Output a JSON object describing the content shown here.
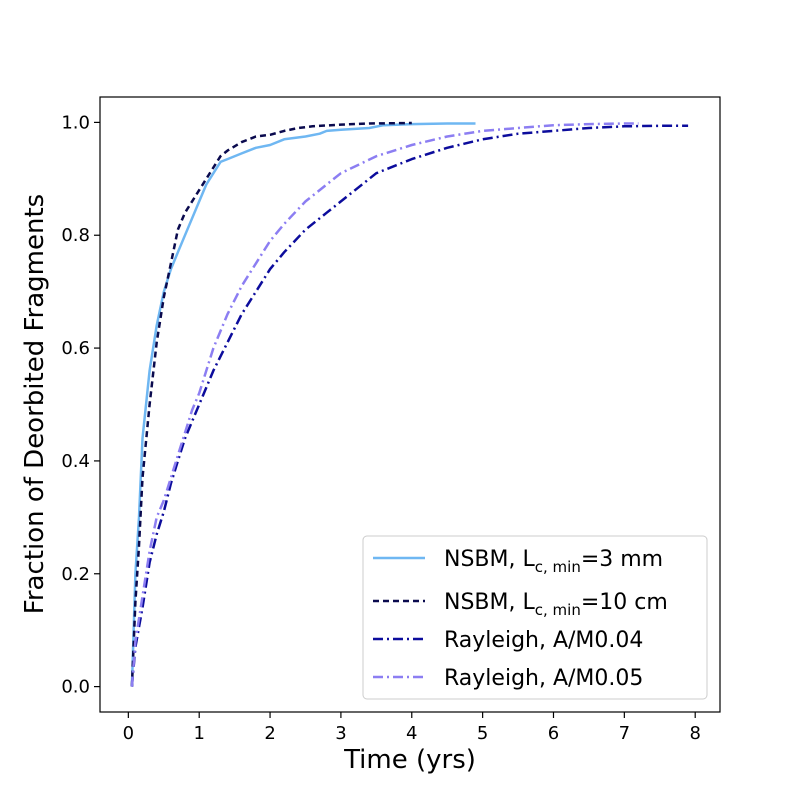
{
  "chart_data": {
    "type": "line",
    "xlabel": "Time (yrs)",
    "ylabel": "Fraction of Deorbited Fragments",
    "xlim": [
      -0.4,
      8.35
    ],
    "ylim": [
      -0.045,
      1.045
    ],
    "xticks": [
      0,
      1,
      2,
      3,
      4,
      5,
      6,
      7,
      8
    ],
    "yticks": [
      0.0,
      0.2,
      0.4,
      0.6,
      0.8,
      1.0
    ],
    "xtick_labels": [
      "0",
      "1",
      "2",
      "3",
      "4",
      "5",
      "6",
      "7",
      "8"
    ],
    "ytick_labels": [
      "0.0",
      "0.2",
      "0.4",
      "0.6",
      "0.8",
      "1.0"
    ],
    "grid": false,
    "legend_position": "bottom-right",
    "series": [
      {
        "name": "NSBM, L",
        "name_sub": "c, min",
        "name_tail": "=3 mm",
        "color": "#6fb7f2",
        "style": "solid",
        "x": [
          0.05,
          0.1,
          0.15,
          0.2,
          0.3,
          0.4,
          0.5,
          0.6,
          0.7,
          0.8,
          0.9,
          1.0,
          1.1,
          1.2,
          1.3,
          1.4,
          1.6,
          1.8,
          2.0,
          2.2,
          2.5,
          2.7,
          2.8,
          3.0,
          3.4,
          3.6,
          4.0,
          4.5,
          4.9
        ],
        "y": [
          0.0,
          0.2,
          0.3,
          0.44,
          0.56,
          0.64,
          0.7,
          0.74,
          0.77,
          0.8,
          0.83,
          0.86,
          0.89,
          0.91,
          0.93,
          0.935,
          0.945,
          0.955,
          0.96,
          0.97,
          0.975,
          0.98,
          0.985,
          0.987,
          0.99,
          0.995,
          0.997,
          0.998,
          0.998
        ]
      },
      {
        "name": "NSBM, L",
        "name_sub": "c, min",
        "name_tail": "=10 cm",
        "color": "#0a0a4e",
        "style": "dashed",
        "x": [
          0.05,
          0.1,
          0.15,
          0.2,
          0.3,
          0.4,
          0.5,
          0.6,
          0.7,
          0.8,
          0.9,
          1.0,
          1.1,
          1.2,
          1.3,
          1.4,
          1.6,
          1.8,
          2.0,
          2.2,
          2.4,
          2.6,
          3.0,
          3.4,
          4.0
        ],
        "y": [
          0.0,
          0.15,
          0.25,
          0.37,
          0.5,
          0.61,
          0.69,
          0.75,
          0.81,
          0.84,
          0.86,
          0.88,
          0.9,
          0.92,
          0.94,
          0.95,
          0.965,
          0.975,
          0.978,
          0.985,
          0.99,
          0.993,
          0.996,
          0.998,
          0.999
        ]
      },
      {
        "name": "Rayleigh, A/M0.04",
        "color": "#0c0c9c",
        "style": "dashdot",
        "x": [
          0.05,
          0.1,
          0.2,
          0.3,
          0.4,
          0.5,
          0.6,
          0.7,
          0.8,
          0.9,
          1.0,
          1.2,
          1.4,
          1.6,
          1.8,
          2.0,
          2.2,
          2.5,
          2.8,
          3.0,
          3.5,
          4.0,
          4.5,
          5.0,
          5.5,
          6.0,
          6.5,
          7.0,
          7.5,
          7.9
        ],
        "y": [
          0.0,
          0.07,
          0.14,
          0.22,
          0.27,
          0.31,
          0.36,
          0.4,
          0.44,
          0.47,
          0.5,
          0.56,
          0.61,
          0.66,
          0.7,
          0.74,
          0.77,
          0.81,
          0.84,
          0.86,
          0.91,
          0.935,
          0.955,
          0.97,
          0.98,
          0.985,
          0.99,
          0.993,
          0.994,
          0.994
        ]
      },
      {
        "name": "Rayleigh, A/M0.05",
        "color": "#8c7ef2",
        "style": "dashdot",
        "x": [
          0.05,
          0.1,
          0.2,
          0.3,
          0.4,
          0.5,
          0.6,
          0.7,
          0.8,
          0.9,
          1.0,
          1.2,
          1.4,
          1.6,
          1.8,
          2.0,
          2.2,
          2.5,
          2.8,
          3.0,
          3.5,
          4.0,
          4.5,
          5.0,
          5.5,
          6.0,
          6.5,
          7.0,
          7.2
        ],
        "y": [
          0.0,
          0.08,
          0.16,
          0.24,
          0.3,
          0.33,
          0.37,
          0.41,
          0.45,
          0.49,
          0.52,
          0.6,
          0.66,
          0.71,
          0.75,
          0.79,
          0.82,
          0.86,
          0.89,
          0.91,
          0.94,
          0.96,
          0.975,
          0.985,
          0.99,
          0.995,
          0.997,
          0.998,
          0.998
        ]
      }
    ]
  }
}
